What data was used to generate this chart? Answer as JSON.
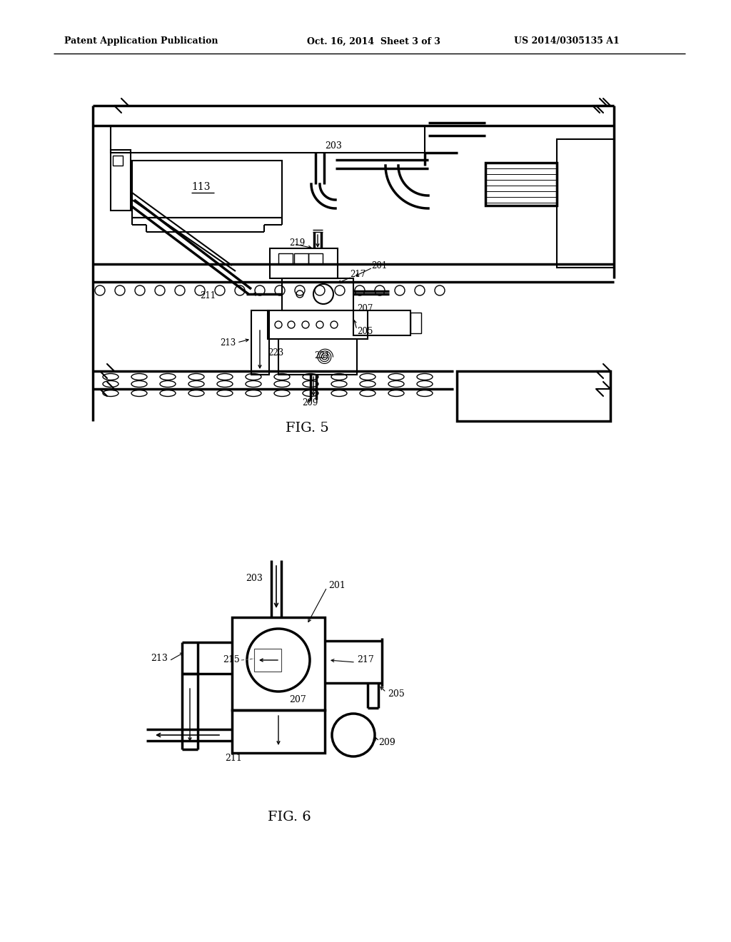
{
  "header_left": "Patent Application Publication",
  "header_mid": "Oct. 16, 2014  Sheet 3 of 3",
  "header_right": "US 2014/0305135 A1",
  "fig5_label": "FIG. 5",
  "fig6_label": "FIG. 6",
  "background_color": "#ffffff",
  "line_color": "#000000"
}
